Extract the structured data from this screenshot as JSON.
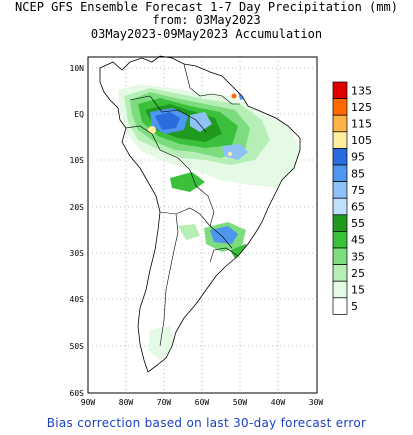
{
  "title": {
    "line1": "NCEP GFS Ensemble Forecast 1-7 Day Precipitation (mm)",
    "line2": "from: 03May2023",
    "line3": "03May2023-09May2023 Accumulation"
  },
  "axes": {
    "lat_labels": [
      "10N",
      "EQ",
      "10S",
      "20S",
      "30S",
      "40S",
      "50S",
      "60S"
    ],
    "lon_labels": [
      "90W",
      "80W",
      "70W",
      "60W",
      "50W",
      "40W",
      "30W"
    ]
  },
  "legend": {
    "labels": [
      "135",
      "125",
      "115",
      "105",
      "95",
      "85",
      "75",
      "65",
      "55",
      "45",
      "35",
      "25",
      "15",
      "5"
    ],
    "colors": [
      "#e00000",
      "#ff6a00",
      "#ffb347",
      "#ffeea0",
      "#2a6be0",
      "#4f96f0",
      "#8ec2f7",
      "#bfe0fb",
      "#1f9a1f",
      "#3bc03b",
      "#7ddc7d",
      "#b5efb5",
      "#e4fae4",
      "#ffffff"
    ]
  },
  "footer": {
    "note": "Bias correction based on last 30-day forecast error"
  }
}
